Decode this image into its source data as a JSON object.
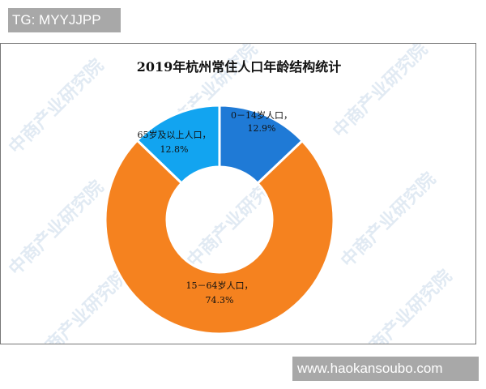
{
  "overlay_tag": "TG: MYYJJPP",
  "site_tag": "www.haokansoubo.com",
  "watermark": "中商产业研究院",
  "chart_data": {
    "type": "pie",
    "subtype": "donut",
    "title": "2019年杭州常住人口年龄结构统计",
    "categories": [
      "0-14岁人口",
      "15-64岁人口",
      "65岁及以上人口"
    ],
    "values": [
      12.9,
      74.3,
      12.8
    ],
    "unit": "%",
    "colors": [
      "#1f7ad6",
      "#f5821f",
      "#12a4f0"
    ],
    "labels": [
      {
        "line1": "0－14岁人口，",
        "line2": "12.9%"
      },
      {
        "line1": "15－64岁人口，",
        "line2": "74.3%"
      },
      {
        "line1": "65岁及以上人口，",
        "line2": "12.8%"
      }
    ],
    "legend": "none"
  }
}
